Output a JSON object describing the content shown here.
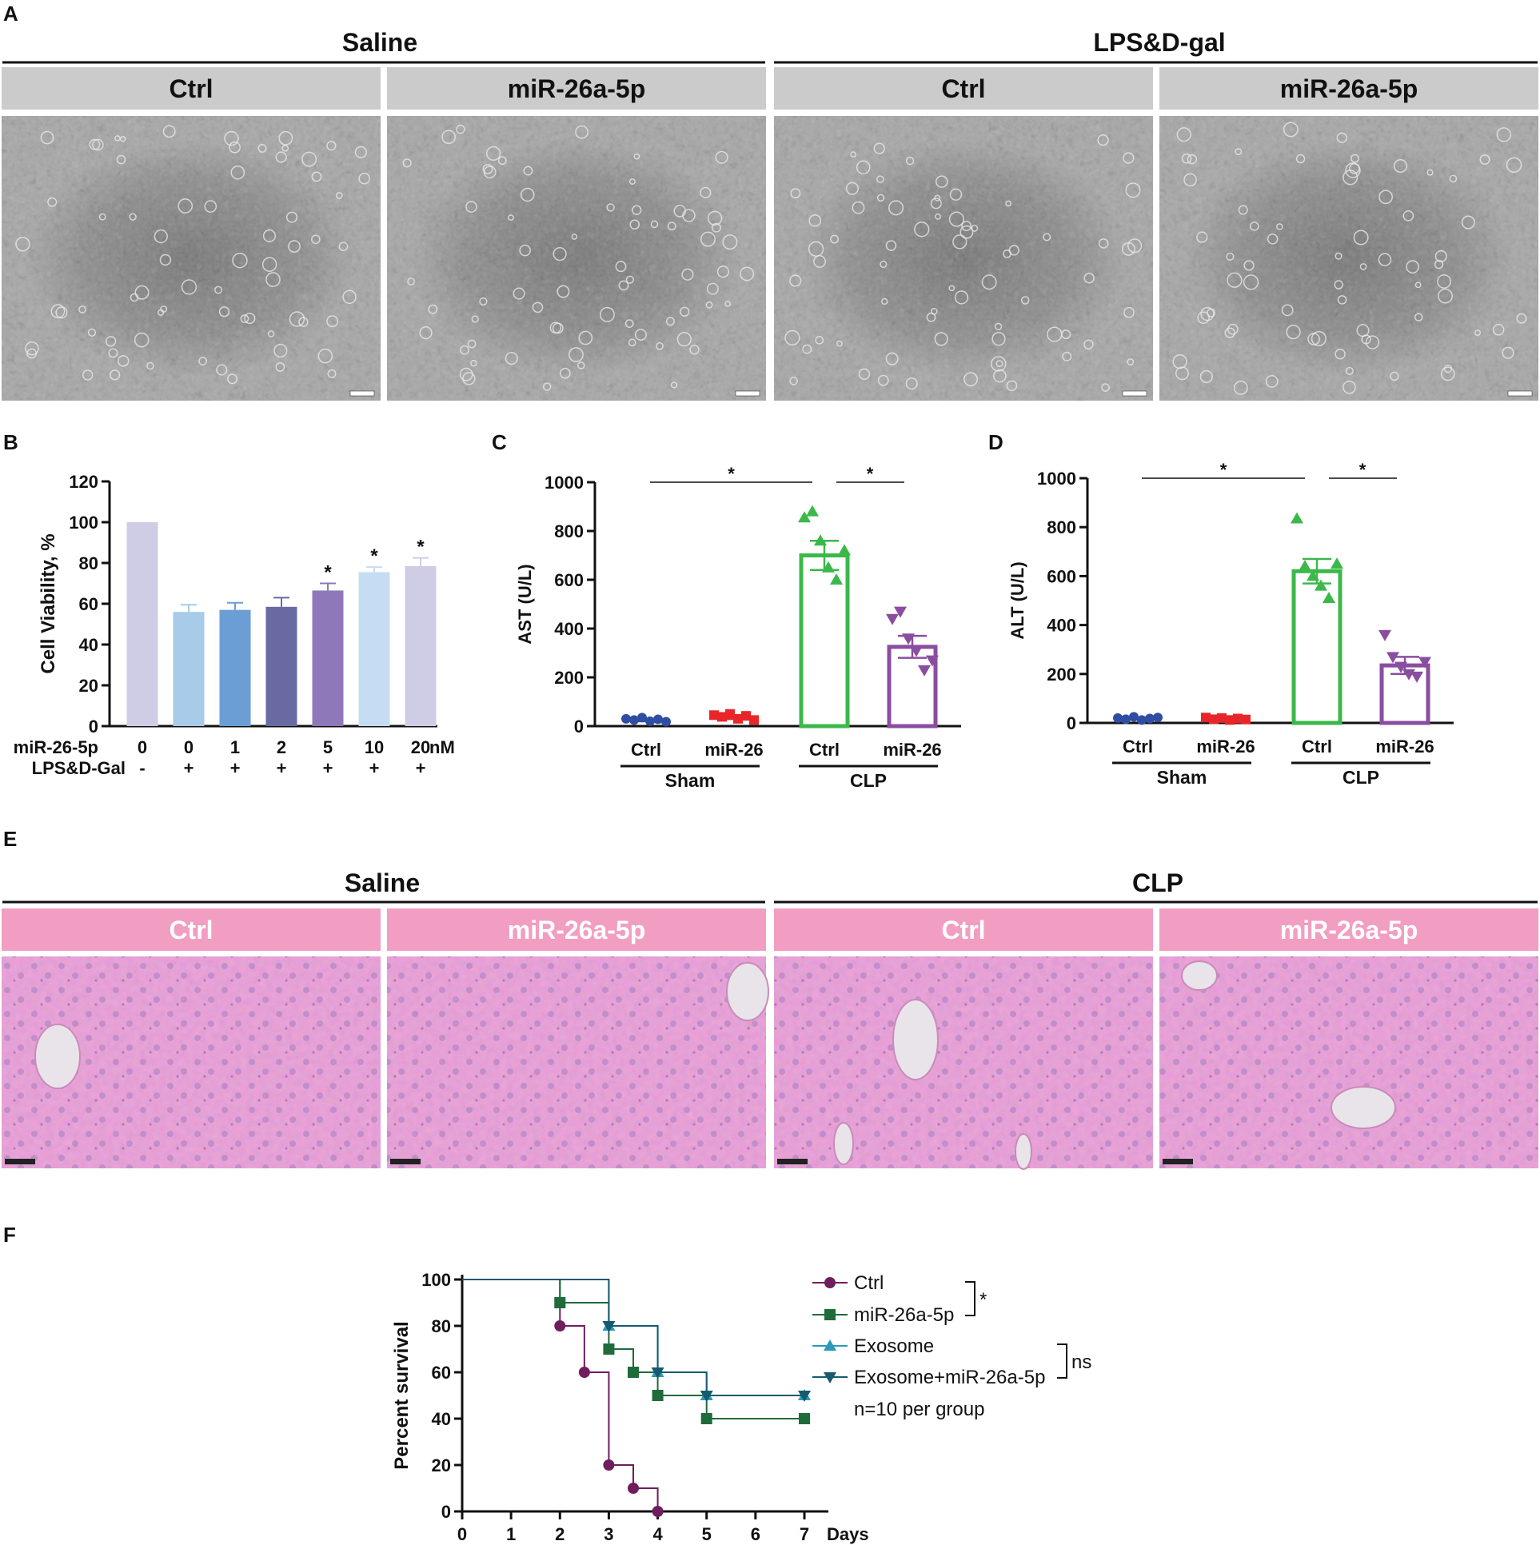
{
  "panel_labels": {
    "a": "A",
    "b": "B",
    "c": "C",
    "d": "D",
    "e": "E",
    "f": "F"
  },
  "panel_a": {
    "group_left": "Saline",
    "group_right": "LPS&D-gal",
    "subheaders": [
      "Ctrl",
      "miR-26a-5p",
      "Ctrl",
      "miR-26a-5p"
    ],
    "header_color": "#cbcbcb"
  },
  "panel_e": {
    "group_left": "Saline",
    "group_right": "CLP",
    "subheaders": [
      "Ctrl",
      "miR-26a-5p",
      "Ctrl",
      "miR-26a-5p"
    ],
    "header_color": "#f19ec2"
  },
  "chart_data": [
    {
      "id": "B",
      "type": "bar",
      "ylabel": "Cell Viability, %",
      "ylim": [
        0,
        120
      ],
      "yticks": [
        0,
        20,
        40,
        60,
        80,
        100,
        120
      ],
      "categories": [
        "0",
        "0",
        "1",
        "2",
        "5",
        "10",
        "20"
      ],
      "values": [
        100,
        56,
        57,
        58.5,
        66.5,
        75.5,
        78.5
      ],
      "errors": [
        0,
        3.5,
        3.5,
        4.5,
        3.5,
        2.5,
        4
      ],
      "colors": [
        "#cfcde6",
        "#a7cbe9",
        "#6a9ed4",
        "#6a6aa2",
        "#8f78b9",
        "#c5dcf2",
        "#cfcde6"
      ],
      "significance": [
        "",
        "",
        "",
        "",
        "*",
        "*",
        "*"
      ],
      "row_labels": [
        "miR-26-5p",
        "LPS&D-Gal"
      ],
      "unit_label": "nM",
      "lps_row": [
        "-",
        "+",
        "+",
        "+",
        "+",
        "+",
        "+"
      ]
    },
    {
      "id": "C",
      "type": "bar",
      "ylabel": "AST (U/L)",
      "ylim": [
        0,
        1000
      ],
      "yticks": [
        0,
        200,
        400,
        600,
        800,
        1000
      ],
      "categories": [
        "Ctrl",
        "miR-26",
        "Ctrl",
        "miR-26"
      ],
      "groups": [
        "Sham",
        "CLP"
      ],
      "means": [
        25,
        35,
        700,
        325
      ],
      "errors": [
        5,
        6,
        60,
        45
      ],
      "colors": [
        "#2f4ea3",
        "#e8262a",
        "#3cb84a",
        "#8a4ea0"
      ],
      "points": [
        [
          30,
          25,
          35,
          20,
          28,
          18
        ],
        [
          45,
          38,
          50,
          30,
          42,
          25
        ],
        [
          855,
          880,
          760,
          650,
          600,
          720
        ],
        [
          440,
          470,
          360,
          310,
          230,
          270
        ]
      ],
      "comparisons": [
        {
          "from": 0,
          "to": 2,
          "label": "*"
        },
        {
          "from": 2,
          "to": 3,
          "label": "*"
        }
      ]
    },
    {
      "id": "D",
      "type": "bar",
      "ylabel": "ALT (U/L)",
      "ylim": [
        0,
        1000
      ],
      "yticks": [
        0,
        200,
        400,
        600,
        800,
        1000
      ],
      "categories": [
        "Ctrl",
        "miR-26",
        "Ctrl",
        "miR-26"
      ],
      "groups": [
        "Sham",
        "CLP"
      ],
      "means": [
        18,
        18,
        620,
        235
      ],
      "errors": [
        4,
        4,
        50,
        35
      ],
      "colors": [
        "#2f4ea3",
        "#e8262a",
        "#3cb84a",
        "#8a4ea0"
      ],
      "points": [
        [
          20,
          15,
          25,
          12,
          18,
          22
        ],
        [
          22,
          15,
          20,
          12,
          18,
          14
        ],
        [
          835,
          640,
          600,
          560,
          510,
          650
        ],
        [
          360,
          270,
          230,
          200,
          190,
          250
        ]
      ],
      "comparisons": [
        {
          "from": 0,
          "to": 2,
          "label": "*"
        },
        {
          "from": 2,
          "to": 3,
          "label": "*"
        }
      ]
    },
    {
      "id": "F",
      "type": "line",
      "ylabel": "Percent survival",
      "xlabel": "Days",
      "xlim": [
        0,
        7
      ],
      "ylim": [
        0,
        100
      ],
      "xticks": [
        0,
        1,
        2,
        3,
        4,
        5,
        6,
        7
      ],
      "yticks": [
        0,
        20,
        40,
        60,
        80,
        100
      ],
      "series": [
        {
          "name": "Ctrl",
          "color": "#6f1d5c",
          "marker": "circle",
          "x": [
            0,
            2,
            2.5,
            3,
            3.5,
            4
          ],
          "y": [
            100,
            80,
            60,
            20,
            10,
            0
          ]
        },
        {
          "name": "miR-26a-5p",
          "color": "#1f6b3a",
          "marker": "square",
          "x": [
            0,
            2,
            3,
            3.5,
            4,
            5,
            7
          ],
          "y": [
            100,
            90,
            70,
            60,
            50,
            40,
            40
          ]
        },
        {
          "name": "Exosome",
          "color": "#2a9ab8",
          "marker": "triangle-up",
          "x": [
            0,
            3,
            4,
            5,
            7
          ],
          "y": [
            100,
            80,
            60,
            50,
            50
          ]
        },
        {
          "name": "Exosome+miR-26a-5p",
          "color": "#155a70",
          "marker": "triangle-down",
          "x": [
            0,
            3,
            4,
            5,
            7
          ],
          "y": [
            100,
            80,
            60,
            50,
            50
          ]
        }
      ],
      "legend_note": "n=10 per group",
      "legend_brackets": [
        {
          "series": [
            0,
            1
          ],
          "label": "*"
        },
        {
          "series": [
            2,
            3
          ],
          "label": "ns"
        }
      ]
    }
  ]
}
